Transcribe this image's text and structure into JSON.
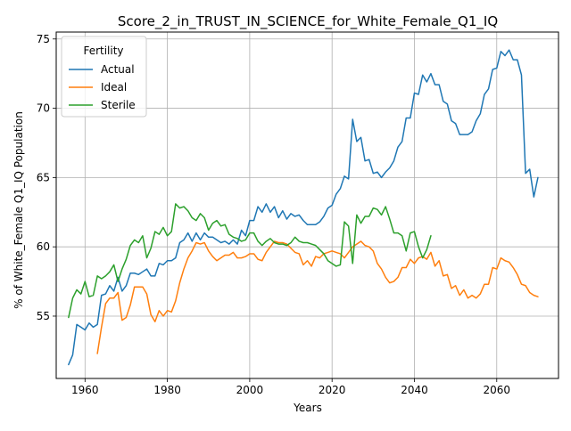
{
  "chart_data": {
    "type": "line",
    "title": "Score_2_in_TRUST_IN_SCIENCE_for_White_Female_Q1_IQ",
    "xlabel": "Years",
    "ylabel": "% of White_Female Q1_IQ Population",
    "xlim": [
      1953,
      2075
    ],
    "ylim": [
      50.5,
      75.5
    ],
    "xticks": [
      1960,
      1980,
      2000,
      2020,
      2040,
      2060
    ],
    "yticks": [
      55,
      60,
      65,
      70,
      75
    ],
    "grid": true,
    "legend": {
      "title": "Fertility",
      "placement": "top-left"
    },
    "series": [
      {
        "name": "Actual",
        "color": "#1f77b4",
        "points": [
          [
            1956,
            51.5
          ],
          [
            1957,
            52.2
          ],
          [
            1958,
            54.4
          ],
          [
            1959,
            54.2
          ],
          [
            1960,
            54.0
          ],
          [
            1961,
            54.5
          ],
          [
            1962,
            54.2
          ],
          [
            1963,
            54.4
          ],
          [
            1964,
            56.5
          ],
          [
            1965,
            56.6
          ],
          [
            1966,
            57.2
          ],
          [
            1967,
            56.8
          ],
          [
            1968,
            57.8
          ],
          [
            1969,
            56.8
          ],
          [
            1970,
            57.2
          ],
          [
            1971,
            58.1
          ],
          [
            1972,
            58.1
          ],
          [
            1973,
            58.0
          ],
          [
            1974,
            58.2
          ],
          [
            1975,
            58.4
          ],
          [
            1976,
            57.9
          ],
          [
            1977,
            57.9
          ],
          [
            1978,
            58.8
          ],
          [
            1979,
            58.7
          ],
          [
            1980,
            59.0
          ],
          [
            1981,
            59.0
          ],
          [
            1982,
            59.2
          ],
          [
            1983,
            60.3
          ],
          [
            1984,
            60.5
          ],
          [
            1985,
            61.0
          ],
          [
            1986,
            60.4
          ],
          [
            1987,
            61.0
          ],
          [
            1988,
            60.5
          ],
          [
            1989,
            61.0
          ],
          [
            1990,
            60.7
          ],
          [
            1991,
            60.7
          ],
          [
            1992,
            60.5
          ],
          [
            1993,
            60.3
          ],
          [
            1994,
            60.4
          ],
          [
            1995,
            60.2
          ],
          [
            1996,
            60.5
          ],
          [
            1997,
            60.2
          ],
          [
            1998,
            61.2
          ],
          [
            1999,
            60.8
          ],
          [
            2000,
            61.9
          ],
          [
            2001,
            61.9
          ],
          [
            2002,
            62.9
          ],
          [
            2003,
            62.5
          ],
          [
            2004,
            63.1
          ],
          [
            2005,
            62.5
          ],
          [
            2006,
            62.9
          ],
          [
            2007,
            62.1
          ],
          [
            2008,
            62.6
          ],
          [
            2009,
            62.0
          ],
          [
            2010,
            62.4
          ],
          [
            2011,
            62.2
          ],
          [
            2012,
            62.3
          ],
          [
            2013,
            61.9
          ],
          [
            2014,
            61.6
          ],
          [
            2015,
            61.6
          ],
          [
            2016,
            61.6
          ],
          [
            2017,
            61.8
          ],
          [
            2018,
            62.2
          ],
          [
            2019,
            62.8
          ],
          [
            2020,
            63.0
          ],
          [
            2021,
            63.8
          ],
          [
            2022,
            64.2
          ],
          [
            2023,
            65.1
          ],
          [
            2024,
            64.9
          ],
          [
            2025,
            69.2
          ],
          [
            2026,
            67.6
          ],
          [
            2027,
            67.9
          ],
          [
            2028,
            66.2
          ],
          [
            2029,
            66.3
          ],
          [
            2030,
            65.3
          ],
          [
            2031,
            65.4
          ],
          [
            2032,
            65.0
          ],
          [
            2033,
            65.4
          ],
          [
            2034,
            65.7
          ],
          [
            2035,
            66.2
          ],
          [
            2036,
            67.2
          ],
          [
            2037,
            67.6
          ],
          [
            2038,
            69.3
          ],
          [
            2039,
            69.3
          ],
          [
            2040,
            71.1
          ],
          [
            2041,
            71.0
          ],
          [
            2042,
            72.4
          ],
          [
            2043,
            71.9
          ],
          [
            2044,
            72.5
          ],
          [
            2045,
            71.7
          ],
          [
            2046,
            71.7
          ],
          [
            2047,
            70.5
          ],
          [
            2048,
            70.3
          ],
          [
            2049,
            69.1
          ],
          [
            2050,
            68.9
          ],
          [
            2051,
            68.1
          ],
          [
            2052,
            68.1
          ],
          [
            2053,
            68.1
          ],
          [
            2054,
            68.3
          ],
          [
            2055,
            69.1
          ],
          [
            2056,
            69.6
          ],
          [
            2057,
            71.0
          ],
          [
            2058,
            71.4
          ],
          [
            2059,
            72.8
          ],
          [
            2060,
            72.9
          ],
          [
            2061,
            74.1
          ],
          [
            2062,
            73.8
          ],
          [
            2063,
            74.2
          ],
          [
            2064,
            73.5
          ],
          [
            2065,
            73.5
          ],
          [
            2066,
            72.4
          ],
          [
            2067,
            65.3
          ],
          [
            2068,
            65.6
          ],
          [
            2069,
            63.6
          ],
          [
            2070,
            65.0
          ]
        ]
      },
      {
        "name": "Ideal",
        "color": "#ff7f0e",
        "points": [
          [
            1963,
            52.3
          ],
          [
            1964,
            54.2
          ],
          [
            1965,
            55.9
          ],
          [
            1966,
            56.3
          ],
          [
            1967,
            56.3
          ],
          [
            1968,
            56.7
          ],
          [
            1969,
            54.7
          ],
          [
            1970,
            54.9
          ],
          [
            1971,
            55.8
          ],
          [
            1972,
            57.1
          ],
          [
            1973,
            57.1
          ],
          [
            1974,
            57.1
          ],
          [
            1975,
            56.6
          ],
          [
            1976,
            55.1
          ],
          [
            1977,
            54.6
          ],
          [
            1978,
            55.4
          ],
          [
            1979,
            55.0
          ],
          [
            1980,
            55.4
          ],
          [
            1981,
            55.3
          ],
          [
            1982,
            56.1
          ],
          [
            1983,
            57.4
          ],
          [
            1984,
            58.4
          ],
          [
            1985,
            59.2
          ],
          [
            1986,
            59.7
          ],
          [
            1987,
            60.3
          ],
          [
            1988,
            60.2
          ],
          [
            1989,
            60.3
          ],
          [
            1990,
            59.7
          ],
          [
            1991,
            59.3
          ],
          [
            1992,
            59.0
          ],
          [
            1993,
            59.2
          ],
          [
            1994,
            59.4
          ],
          [
            1995,
            59.4
          ],
          [
            1996,
            59.6
          ],
          [
            1997,
            59.2
          ],
          [
            1998,
            59.2
          ],
          [
            1999,
            59.3
          ],
          [
            2000,
            59.5
          ],
          [
            2001,
            59.5
          ],
          [
            2002,
            59.1
          ],
          [
            2003,
            59.0
          ],
          [
            2004,
            59.6
          ],
          [
            2005,
            60.0
          ],
          [
            2006,
            60.4
          ],
          [
            2007,
            60.3
          ],
          [
            2008,
            60.3
          ],
          [
            2009,
            60.2
          ],
          [
            2010,
            59.9
          ],
          [
            2011,
            59.6
          ],
          [
            2012,
            59.5
          ],
          [
            2013,
            58.7
          ],
          [
            2014,
            59.0
          ],
          [
            2015,
            58.6
          ],
          [
            2016,
            59.3
          ],
          [
            2017,
            59.2
          ],
          [
            2018,
            59.5
          ],
          [
            2019,
            59.6
          ],
          [
            2020,
            59.7
          ],
          [
            2021,
            59.6
          ],
          [
            2022,
            59.5
          ],
          [
            2023,
            59.2
          ],
          [
            2024,
            59.6
          ],
          [
            2025,
            60.0
          ],
          [
            2026,
            60.2
          ],
          [
            2027,
            60.4
          ],
          [
            2028,
            60.1
          ],
          [
            2029,
            60.0
          ],
          [
            2030,
            59.7
          ],
          [
            2031,
            58.8
          ],
          [
            2032,
            58.4
          ],
          [
            2033,
            57.8
          ],
          [
            2034,
            57.4
          ],
          [
            2035,
            57.5
          ],
          [
            2036,
            57.8
          ],
          [
            2037,
            58.5
          ],
          [
            2038,
            58.5
          ],
          [
            2039,
            59.1
          ],
          [
            2040,
            58.8
          ],
          [
            2041,
            59.2
          ],
          [
            2042,
            59.3
          ],
          [
            2043,
            59.1
          ],
          [
            2044,
            59.6
          ],
          [
            2045,
            58.6
          ],
          [
            2046,
            59.0
          ],
          [
            2047,
            57.9
          ],
          [
            2048,
            58.0
          ],
          [
            2049,
            57.0
          ],
          [
            2050,
            57.2
          ],
          [
            2051,
            56.5
          ],
          [
            2052,
            56.9
          ],
          [
            2053,
            56.3
          ],
          [
            2054,
            56.5
          ],
          [
            2055,
            56.3
          ],
          [
            2056,
            56.6
          ],
          [
            2057,
            57.3
          ],
          [
            2058,
            57.3
          ],
          [
            2059,
            58.5
          ],
          [
            2060,
            58.4
          ],
          [
            2061,
            59.2
          ],
          [
            2062,
            59.0
          ],
          [
            2063,
            58.9
          ],
          [
            2064,
            58.5
          ],
          [
            2065,
            58.0
          ],
          [
            2066,
            57.3
          ],
          [
            2067,
            57.2
          ],
          [
            2068,
            56.7
          ],
          [
            2069,
            56.5
          ],
          [
            2070,
            56.4
          ]
        ]
      },
      {
        "name": "Sterile",
        "color": "#2ca02c",
        "points": [
          [
            1956,
            54.9
          ],
          [
            1957,
            56.3
          ],
          [
            1958,
            56.9
          ],
          [
            1959,
            56.6
          ],
          [
            1960,
            57.5
          ],
          [
            1961,
            56.4
          ],
          [
            1962,
            56.5
          ],
          [
            1963,
            57.9
          ],
          [
            1964,
            57.7
          ],
          [
            1965,
            57.9
          ],
          [
            1966,
            58.2
          ],
          [
            1967,
            58.7
          ],
          [
            1968,
            57.5
          ],
          [
            1969,
            58.4
          ],
          [
            1970,
            59.1
          ],
          [
            1971,
            60.1
          ],
          [
            1972,
            60.5
          ],
          [
            1973,
            60.3
          ],
          [
            1974,
            60.8
          ],
          [
            1975,
            59.2
          ],
          [
            1976,
            59.9
          ],
          [
            1977,
            61.1
          ],
          [
            1978,
            60.9
          ],
          [
            1979,
            61.4
          ],
          [
            1980,
            60.8
          ],
          [
            1981,
            61.1
          ],
          [
            1982,
            63.1
          ],
          [
            1983,
            62.8
          ],
          [
            1984,
            62.9
          ],
          [
            1985,
            62.6
          ],
          [
            1986,
            62.1
          ],
          [
            1987,
            61.9
          ],
          [
            1988,
            62.4
          ],
          [
            1989,
            62.1
          ],
          [
            1990,
            61.2
          ],
          [
            1991,
            61.7
          ],
          [
            1992,
            61.9
          ],
          [
            1993,
            61.5
          ],
          [
            1994,
            61.6
          ],
          [
            1995,
            60.9
          ],
          [
            1996,
            60.7
          ],
          [
            1997,
            60.6
          ],
          [
            1998,
            60.4
          ],
          [
            1999,
            60.5
          ],
          [
            2000,
            61.0
          ],
          [
            2001,
            61.0
          ],
          [
            2002,
            60.4
          ],
          [
            2003,
            60.1
          ],
          [
            2004,
            60.4
          ],
          [
            2005,
            60.6
          ],
          [
            2006,
            60.3
          ],
          [
            2007,
            60.2
          ],
          [
            2008,
            60.2
          ],
          [
            2009,
            60.1
          ],
          [
            2010,
            60.3
          ],
          [
            2011,
            60.7
          ],
          [
            2012,
            60.4
          ],
          [
            2013,
            60.3
          ],
          [
            2014,
            60.3
          ],
          [
            2015,
            60.2
          ],
          [
            2016,
            60.1
          ],
          [
            2017,
            59.8
          ],
          [
            2018,
            59.5
          ],
          [
            2019,
            59.0
          ],
          [
            2020,
            58.8
          ],
          [
            2021,
            58.6
          ],
          [
            2022,
            58.7
          ],
          [
            2023,
            61.8
          ],
          [
            2024,
            61.5
          ],
          [
            2025,
            58.8
          ],
          [
            2026,
            62.3
          ],
          [
            2027,
            61.7
          ],
          [
            2028,
            62.2
          ],
          [
            2029,
            62.2
          ],
          [
            2030,
            62.8
          ],
          [
            2031,
            62.7
          ],
          [
            2032,
            62.3
          ],
          [
            2033,
            62.9
          ],
          [
            2034,
            62.0
          ],
          [
            2035,
            61.0
          ],
          [
            2036,
            61.0
          ],
          [
            2037,
            60.8
          ],
          [
            2038,
            59.7
          ],
          [
            2039,
            61.0
          ],
          [
            2040,
            61.1
          ],
          [
            2041,
            60.0
          ],
          [
            2042,
            59.2
          ],
          [
            2043,
            59.8
          ],
          [
            2044,
            60.8
          ]
        ]
      }
    ]
  }
}
